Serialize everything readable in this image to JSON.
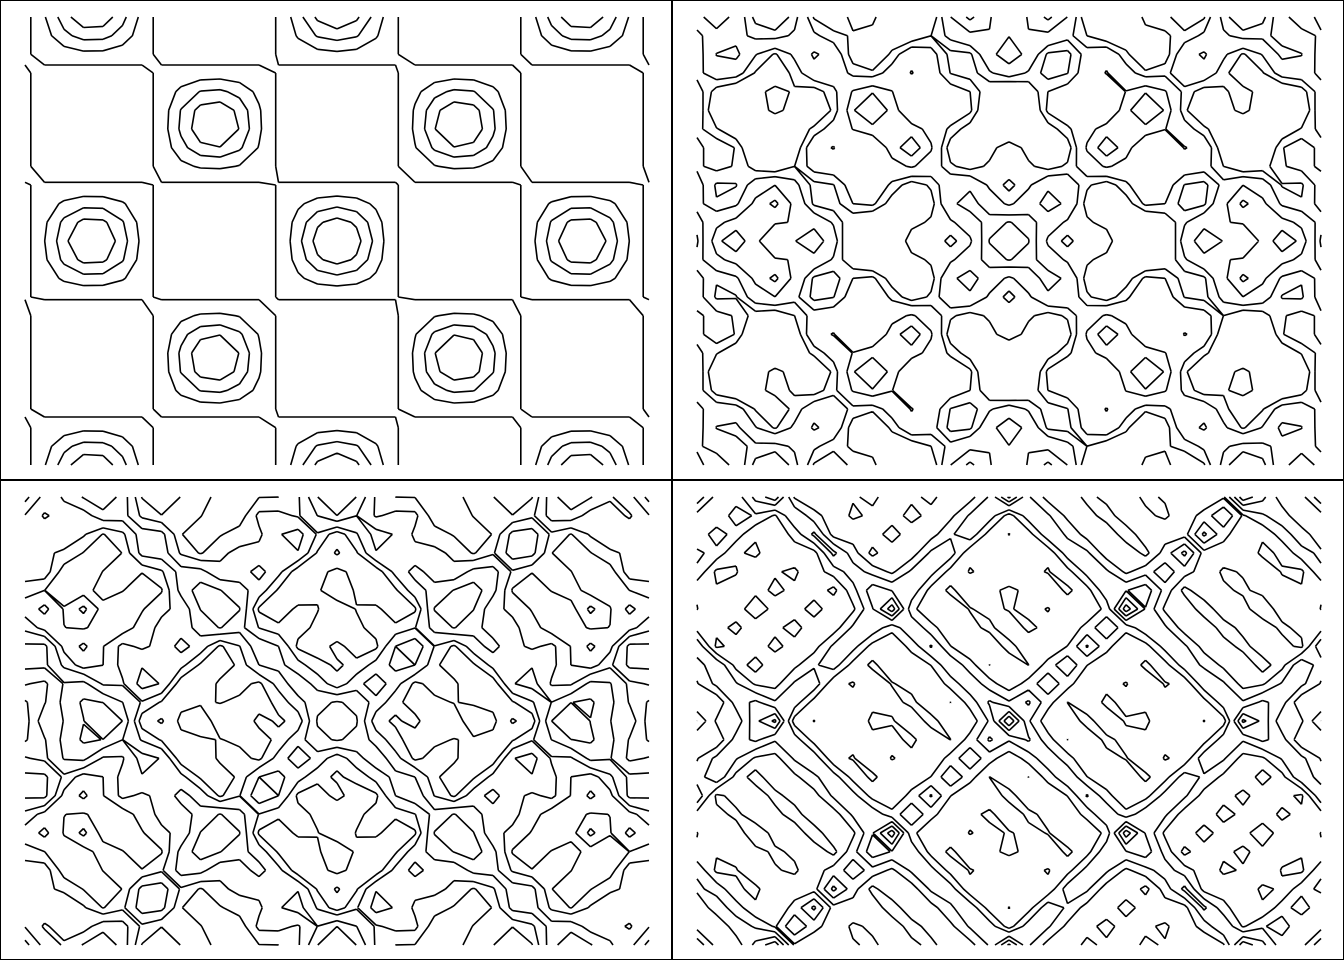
{
  "colors": {
    "line": "#000000",
    "background": "#ffffff",
    "frame": "#000000"
  },
  "chart_data": [
    {
      "type": "contour",
      "title": "",
      "xlabel": "",
      "ylabel": "",
      "axes_visible": false,
      "grid": false,
      "field": "interference",
      "grid_size": [
        33,
        25
      ],
      "x_range": [
        -8,
        8
      ],
      "y_range": [
        -6,
        6
      ],
      "frequencies": [
        1.0
      ],
      "levels": [
        0.0,
        0.35,
        0.6,
        0.8
      ]
    },
    {
      "type": "contour",
      "title": "",
      "xlabel": "",
      "ylabel": "",
      "axes_visible": false,
      "grid": false,
      "field": "interference",
      "grid_size": [
        33,
        25
      ],
      "x_range": [
        -8,
        8
      ],
      "y_range": [
        -6,
        6
      ],
      "frequencies": [
        1.0,
        2.6
      ],
      "levels": [
        -0.2,
        0.0,
        0.35,
        0.6
      ]
    },
    {
      "type": "contour",
      "title": "",
      "xlabel": "",
      "ylabel": "",
      "axes_visible": false,
      "grid": false,
      "field": "interference",
      "grid_size": [
        33,
        25
      ],
      "x_range": [
        -8,
        8
      ],
      "y_range": [
        -6,
        6
      ],
      "frequencies": [
        1.0,
        2.0,
        3.3
      ],
      "levels": [
        -0.5,
        -0.2,
        0.0,
        0.25,
        0.5
      ]
    },
    {
      "type": "contour",
      "title": "",
      "xlabel": "",
      "ylabel": "",
      "axes_visible": false,
      "grid": false,
      "field": "interference",
      "grid_size": [
        33,
        25
      ],
      "x_range": [
        -8,
        8
      ],
      "y_range": [
        -6,
        6
      ],
      "frequencies": [
        1.0,
        2.0,
        3.0,
        4.2,
        5.1
      ],
      "levels": [
        -0.8,
        -0.6,
        -0.4,
        -0.2,
        0.0,
        0.2,
        0.4,
        0.6,
        0.8
      ]
    }
  ]
}
